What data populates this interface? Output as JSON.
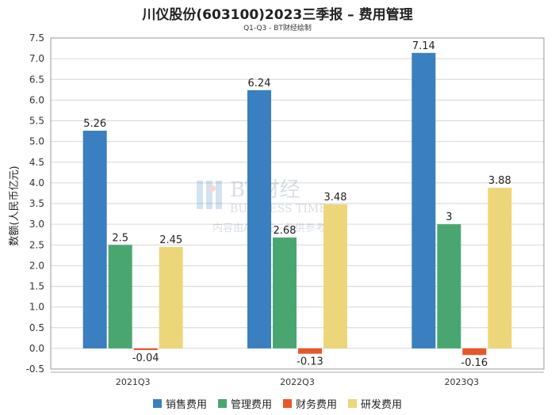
{
  "chart_data": {
    "type": "bar",
    "title": "川仪股份(603100)2023三季报 – 费用管理",
    "subtitle": "Q1-Q3 - BT财经绘制",
    "ylabel": "数额(人民币亿元)",
    "xlabel": "",
    "categories": [
      "2021Q3",
      "2022Q3",
      "2023Q3"
    ],
    "ylim": [
      -0.5,
      7.5
    ],
    "yticks": [
      "-0.5",
      "0.0",
      "0.5",
      "1.0",
      "1.5",
      "2.0",
      "2.5",
      "3.0",
      "3.5",
      "4.0",
      "4.5",
      "5.0",
      "5.5",
      "6.0",
      "6.5",
      "7.0",
      "7.5"
    ],
    "grid": true,
    "legend_position": "bottom",
    "series": [
      {
        "name": "销售费用",
        "color": "#3a7fbf",
        "values": [
          5.26,
          6.24,
          7.14
        ],
        "labels": [
          "5.26",
          "6.24",
          "7.14"
        ]
      },
      {
        "name": "管理费用",
        "color": "#4aa671",
        "values": [
          2.5,
          2.68,
          3
        ],
        "labels": [
          "2.5",
          "2.68",
          "3"
        ]
      },
      {
        "name": "财务费用",
        "color": "#e8562a",
        "values": [
          -0.04,
          -0.13,
          -0.16
        ],
        "labels": [
          "-0.04",
          "-0.13",
          "-0.16"
        ]
      },
      {
        "name": "研发费用",
        "color": "#edd67a",
        "values": [
          2.45,
          3.48,
          3.88
        ],
        "labels": [
          "2.45",
          "3.48",
          "3.88"
        ]
      }
    ]
  },
  "watermark": {
    "logo_text": "BT财经",
    "logo_sub": "BUSINESS TIMES",
    "note": "内容由AI生成，仅供参考"
  }
}
